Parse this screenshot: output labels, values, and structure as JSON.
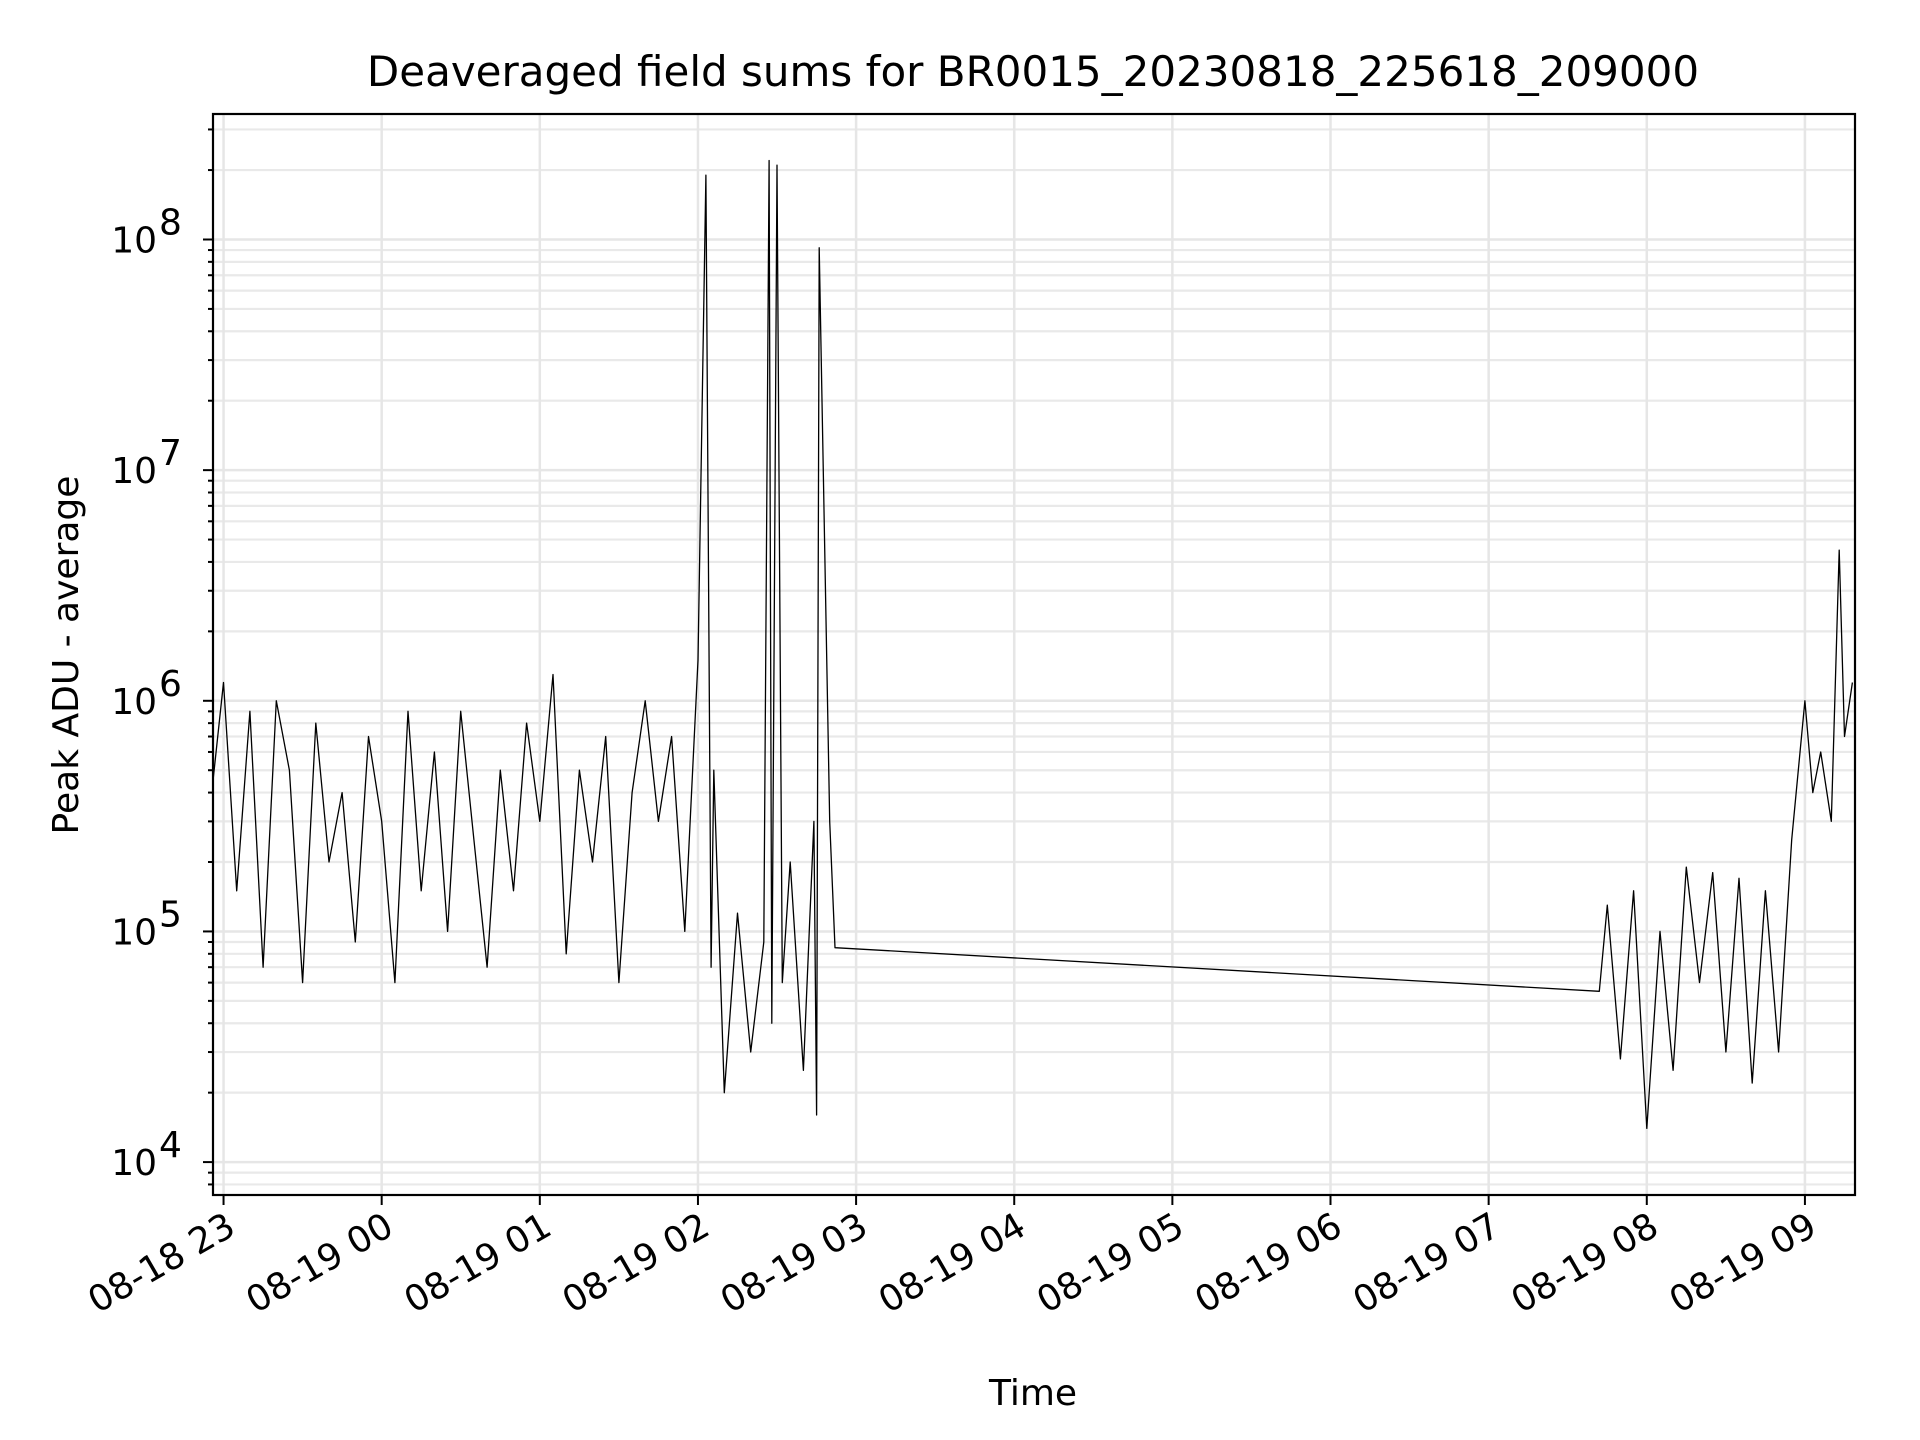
{
  "chart_data": {
    "type": "line",
    "title": "Deaveraged field sums for BR0015_20230818_225618_209000",
    "xlabel": "Time",
    "ylabel": "Peak ADU - average",
    "yscale": "log",
    "ylim": [
      7200,
      350000000
    ],
    "xlim": [
      "2023-08-18 22:56",
      "2023-08-19 09:19"
    ],
    "grid": true,
    "x_ticks": [
      "08-18 23",
      "08-19 00",
      "08-19 01",
      "08-19 02",
      "08-19 03",
      "08-19 04",
      "08-19 05",
      "08-19 06",
      "08-19 07",
      "08-19 08",
      "08-19 09"
    ],
    "y_ticks": [
      {
        "value": 10000,
        "base": "10",
        "exp": "4"
      },
      {
        "value": 100000,
        "base": "10",
        "exp": "5"
      },
      {
        "value": 1000000,
        "base": "10",
        "exp": "6"
      },
      {
        "value": 10000000,
        "base": "10",
        "exp": "7"
      },
      {
        "value": 100000000,
        "base": "10",
        "exp": "8"
      }
    ],
    "series": [
      {
        "color": "#000000",
        "x": [
          "2023-08-18 22:56",
          "2023-08-18 23:00",
          "2023-08-18 23:05",
          "2023-08-18 23:10",
          "2023-08-18 23:15",
          "2023-08-18 23:20",
          "2023-08-18 23:25",
          "2023-08-18 23:30",
          "2023-08-18 23:35",
          "2023-08-18 23:40",
          "2023-08-18 23:45",
          "2023-08-18 23:50",
          "2023-08-18 23:55",
          "2023-08-19 00:00",
          "2023-08-19 00:05",
          "2023-08-19 00:10",
          "2023-08-19 00:15",
          "2023-08-19 00:20",
          "2023-08-19 00:25",
          "2023-08-19 00:30",
          "2023-08-19 00:35",
          "2023-08-19 00:40",
          "2023-08-19 00:45",
          "2023-08-19 00:50",
          "2023-08-19 00:55",
          "2023-08-19 01:00",
          "2023-08-19 01:05",
          "2023-08-19 01:10",
          "2023-08-19 01:15",
          "2023-08-19 01:20",
          "2023-08-19 01:25",
          "2023-08-19 01:30",
          "2023-08-19 01:35",
          "2023-08-19 01:40",
          "2023-08-19 01:45",
          "2023-08-19 01:50",
          "2023-08-19 01:55",
          "2023-08-19 02:00",
          "2023-08-19 02:03",
          "2023-08-19 02:05",
          "2023-08-19 02:06",
          "2023-08-19 02:10",
          "2023-08-19 02:15",
          "2023-08-19 02:20",
          "2023-08-19 02:25",
          "2023-08-19 02:27",
          "2023-08-19 02:28",
          "2023-08-19 02:30",
          "2023-08-19 02:32",
          "2023-08-19 02:35",
          "2023-08-19 02:40",
          "2023-08-19 02:44",
          "2023-08-19 02:45",
          "2023-08-19 02:46",
          "2023-08-19 02:50",
          "2023-08-19 02:52",
          "2023-08-19 07:42",
          "2023-08-19 07:45",
          "2023-08-19 07:50",
          "2023-08-19 07:55",
          "2023-08-19 08:00",
          "2023-08-19 08:05",
          "2023-08-19 08:10",
          "2023-08-19 08:15",
          "2023-08-19 08:20",
          "2023-08-19 08:25",
          "2023-08-19 08:30",
          "2023-08-19 08:35",
          "2023-08-19 08:40",
          "2023-08-19 08:45",
          "2023-08-19 08:50",
          "2023-08-19 08:55",
          "2023-08-19 09:00",
          "2023-08-19 09:03",
          "2023-08-19 09:06",
          "2023-08-19 09:10",
          "2023-08-19 09:13",
          "2023-08-19 09:15",
          "2023-08-19 09:18"
        ],
        "values": [
          450000,
          1200000,
          150000,
          900000,
          70000,
          1000000,
          500000,
          60000,
          800000,
          200000,
          400000,
          90000,
          700000,
          300000,
          60000,
          900000,
          150000,
          600000,
          100000,
          900000,
          250000,
          70000,
          500000,
          150000,
          800000,
          300000,
          1300000,
          80000,
          500000,
          200000,
          700000,
          60000,
          400000,
          1000000,
          300000,
          700000,
          100000,
          1500000,
          190000000,
          70000,
          500000,
          20000,
          120000,
          30000,
          90000,
          220000000,
          40000,
          210000000,
          60000,
          200000,
          25000,
          300000,
          16000,
          92000000,
          300000,
          85000,
          55000,
          130000,
          28000,
          150000,
          14000,
          100000,
          25000,
          190000,
          60000,
          180000,
          30000,
          170000,
          22000,
          150000,
          30000,
          250000,
          1000000,
          400000,
          600000,
          300000,
          4500000,
          700000,
          1200000
        ]
      }
    ]
  }
}
